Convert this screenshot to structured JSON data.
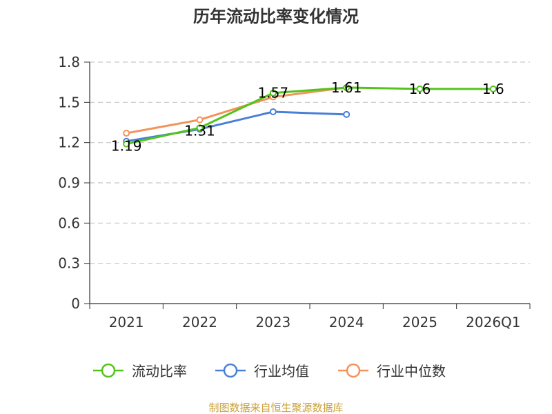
{
  "chart_data": {
    "type": "line",
    "title": "历年流动比率变化情况",
    "categories": [
      "2021",
      "2022",
      "2023",
      "2024",
      "2025",
      "2026Q1"
    ],
    "ylim": [
      0,
      1.8
    ],
    "yticks": [
      "0",
      "0.3",
      "0.6",
      "0.9",
      "1.2",
      "1.5",
      "1.8"
    ],
    "grid": true,
    "legend_position": "bottom",
    "series": [
      {
        "name": "流动比率",
        "color": "#52c41a",
        "values": [
          1.19,
          1.31,
          1.57,
          1.61,
          1.6,
          1.6
        ],
        "labels": [
          "1.19",
          "1.31",
          "1.57",
          "1.61",
          "1.6",
          "1.6"
        ]
      },
      {
        "name": "行业均值",
        "color": "#4a7fd8",
        "values": [
          1.21,
          1.3,
          1.43,
          1.41,
          null,
          null
        ]
      },
      {
        "name": "行业中位数",
        "color": "#f5925a",
        "values": [
          1.27,
          1.37,
          1.54,
          1.61,
          null,
          null
        ]
      }
    ],
    "source": "制图数据来自恒生聚源数据库"
  }
}
